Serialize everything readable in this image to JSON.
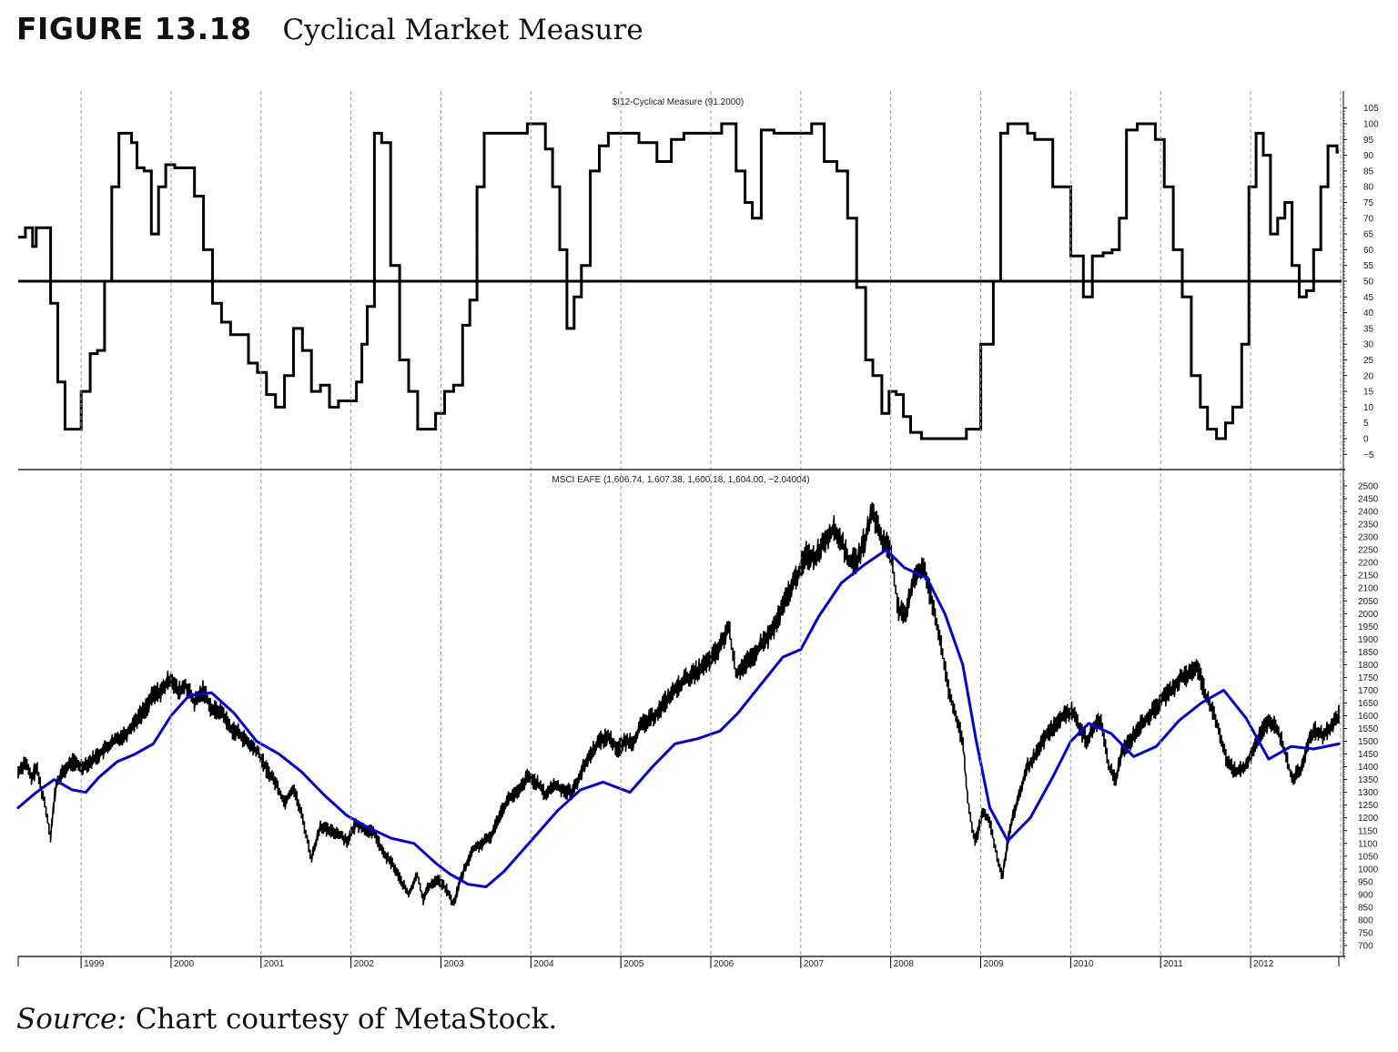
{
  "figure": {
    "label": "FIGURE 13.18",
    "title": "Cyclical Market Measure"
  },
  "source": {
    "prefix": "Source:",
    "text": "Chart courtesy of MetaStock."
  },
  "chart_data": [
    {
      "type": "line",
      "title": "$I12-Cyclical Measure (91.2000)",
      "ylim": [
        -7,
        107
      ],
      "yticks": [
        105,
        100,
        95,
        90,
        85,
        80,
        75,
        70,
        65,
        60,
        55,
        50,
        45,
        40,
        35,
        30,
        25,
        20,
        15,
        10,
        5,
        0,
        -5
      ],
      "ytick_labels": [
        "105",
        "100",
        "95",
        "90",
        "85",
        "80",
        "75",
        "70",
        "65",
        "60",
        "55",
        "50",
        "45",
        "40",
        "35",
        "30",
        "25",
        "20",
        "15",
        "10",
        "5",
        "0",
        "−5"
      ],
      "reference_line": 50,
      "grid": "vertical dashed at year boundaries",
      "series": [
        {
          "color": "#000000",
          "x": [
            1998.28,
            1998.38,
            1998.42,
            1998.46,
            1998.5,
            1998.58,
            1998.66,
            1998.74,
            1998.82,
            1998.9,
            1999.0,
            1999.1,
            1999.18,
            1999.26,
            1999.34,
            1999.42,
            1999.5,
            1999.56,
            1999.62,
            1999.7,
            1999.78,
            1999.86,
            1999.94,
            2000.04,
            2000.16,
            2000.26,
            2000.36,
            2000.46,
            2000.56,
            2000.66,
            2000.76,
            2000.86,
            2000.96,
            2001.06,
            2001.16,
            2001.26,
            2001.36,
            2001.46,
            2001.56,
            2001.66,
            2001.76,
            2001.86,
            2001.96,
            2002.06,
            2002.12,
            2002.18,
            2002.26,
            2002.34,
            2002.44,
            2002.54,
            2002.64,
            2002.74,
            2002.84,
            2002.94,
            2003.04,
            2003.14,
            2003.24,
            2003.32,
            2003.4,
            2003.48,
            2003.56,
            2003.66,
            2003.8,
            2003.96,
            2004.1,
            2004.16,
            2004.24,
            2004.32,
            2004.4,
            2004.48,
            2004.56,
            2004.66,
            2004.76,
            2004.86,
            2005.0,
            2005.2,
            2005.4,
            2005.56,
            2005.7,
            2005.84,
            2006.0,
            2006.12,
            2006.2,
            2006.28,
            2006.38,
            2006.46,
            2006.56,
            2006.7,
            2006.8,
            2006.96,
            2007.12,
            2007.26,
            2007.4,
            2007.52,
            2007.62,
            2007.72,
            2007.8,
            2007.9,
            2007.98,
            2008.06,
            2008.14,
            2008.22,
            2008.34,
            2008.46,
            2008.58,
            2008.7,
            2008.84,
            2009.0,
            2009.14,
            2009.22,
            2009.3,
            2009.36,
            2009.44,
            2009.52,
            2009.6,
            2009.8,
            2010.0,
            2010.14,
            2010.24,
            2010.36,
            2010.46,
            2010.54,
            2010.62,
            2010.74,
            2010.84,
            2010.94,
            2011.04,
            2011.14,
            2011.24,
            2011.34,
            2011.44,
            2011.52,
            2011.62,
            2011.72,
            2011.8,
            2011.9,
            2011.98,
            2012.06,
            2012.14,
            2012.22,
            2012.3,
            2012.38,
            2012.46,
            2012.54,
            2012.62,
            2012.7,
            2012.78,
            2012.86,
            2012.96
          ],
          "y": [
            64,
            67,
            67,
            61,
            67,
            67,
            43,
            18,
            3,
            3,
            15,
            27,
            28,
            50,
            80,
            97,
            97,
            94,
            86,
            85,
            65,
            80,
            87,
            86,
            86,
            77,
            60,
            43,
            37,
            33,
            33,
            24,
            21,
            14,
            10,
            20,
            35,
            28,
            15,
            17,
            10,
            12,
            12,
            18,
            30,
            42,
            97,
            94,
            55,
            25,
            15,
            3,
            3,
            8,
            15,
            17,
            36,
            44,
            80,
            97,
            97,
            97,
            97,
            100,
            100,
            92,
            80,
            60,
            35,
            45,
            55,
            85,
            93,
            97,
            97,
            94,
            88,
            95,
            97,
            97,
            97,
            100,
            100,
            85,
            75,
            70,
            98,
            97,
            97,
            97,
            100,
            88,
            85,
            70,
            48,
            25,
            20,
            8,
            15,
            14,
            7,
            2,
            0,
            0,
            0,
            0,
            3,
            30,
            50,
            97,
            100,
            100,
            100,
            97,
            95,
            80,
            58,
            45,
            58,
            59,
            60,
            70,
            98,
            100,
            100,
            95,
            80,
            60,
            45,
            20,
            10,
            3,
            0,
            5,
            10,
            30,
            80,
            97,
            90,
            65,
            70,
            75,
            55,
            45,
            47,
            60,
            80,
            93,
            91
          ]
        }
      ]
    },
    {
      "type": "line",
      "title": "MSCI EAFE (1,606.74, 1,607.38, 1,600.18, 1,604.00, −2.04004)",
      "xlim": [
        1998.3,
        2012.98
      ],
      "ylim": [
        650,
        2520
      ],
      "yticks": [
        2500,
        2450,
        2400,
        2350,
        2300,
        2250,
        2200,
        2150,
        2100,
        2050,
        2000,
        1950,
        1900,
        1850,
        1800,
        1750,
        1700,
        1650,
        1600,
        1550,
        1500,
        1450,
        1400,
        1350,
        1300,
        1250,
        1200,
        1150,
        1100,
        1050,
        1000,
        950,
        900,
        850,
        800,
        750,
        700
      ],
      "xtick_labels": [
        "1999",
        "2000",
        "2001",
        "2002",
        "2003",
        "2004",
        "2005",
        "2006",
        "2007",
        "2008",
        "2009",
        "2010",
        "2011",
        "2012"
      ],
      "grid": "vertical dashed at year boundaries",
      "series": [
        {
          "color": "#000000",
          "x": [
            1998.3,
            1998.38,
            1998.45,
            1998.5,
            1998.6,
            1998.66,
            1998.72,
            1998.8,
            1998.9,
            1999.0,
            1999.1,
            1999.2,
            1999.3,
            1999.4,
            1999.5,
            1999.6,
            1999.7,
            1999.8,
            1999.9,
            2000.0,
            2000.08,
            2000.16,
            2000.26,
            2000.36,
            2000.46,
            2000.56,
            2000.66,
            2000.76,
            2000.86,
            2000.96,
            2001.06,
            2001.16,
            2001.26,
            2001.36,
            2001.46,
            2001.56,
            2001.66,
            2001.74,
            2001.86,
            2001.96,
            2002.06,
            2002.16,
            2002.26,
            2002.36,
            2002.46,
            2002.56,
            2002.64,
            2002.74,
            2002.8,
            2002.86,
            2002.96,
            2003.06,
            2003.14,
            2003.2,
            2003.26,
            2003.36,
            2003.46,
            2003.56,
            2003.66,
            2003.76,
            2003.86,
            2003.96,
            2004.06,
            2004.16,
            2004.26,
            2004.36,
            2004.46,
            2004.56,
            2004.66,
            2004.76,
            2004.86,
            2004.96,
            2005.06,
            2005.14,
            2005.22,
            2005.3,
            2005.4,
            2005.5,
            2005.6,
            2005.7,
            2005.8,
            2005.9,
            2006.0,
            2006.1,
            2006.2,
            2006.28,
            2006.36,
            2006.46,
            2006.56,
            2006.66,
            2006.76,
            2006.86,
            2006.96,
            2007.06,
            2007.16,
            2007.26,
            2007.36,
            2007.46,
            2007.52,
            2007.62,
            2007.72,
            2007.8,
            2007.9,
            2008.0,
            2008.08,
            2008.16,
            2008.26,
            2008.36,
            2008.46,
            2008.56,
            2008.64,
            2008.72,
            2008.8,
            2008.86,
            2008.94,
            2009.02,
            2009.1,
            2009.16,
            2009.24,
            2009.32,
            2009.42,
            2009.52,
            2009.62,
            2009.72,
            2009.82,
            2009.92,
            2010.02,
            2010.1,
            2010.18,
            2010.26,
            2010.34,
            2010.42,
            2010.5,
            2010.58,
            2010.66,
            2010.74,
            2010.82,
            2010.92,
            2011.02,
            2011.12,
            2011.22,
            2011.32,
            2011.4,
            2011.5,
            2011.6,
            2011.66,
            2011.74,
            2011.84,
            2011.94,
            2012.04,
            2012.14,
            2012.22,
            2012.3,
            2012.38,
            2012.46,
            2012.56,
            2012.64,
            2012.72,
            2012.8,
            2012.9,
            2012.98
          ],
          "y": [
            1380,
            1420,
            1350,
            1400,
            1250,
            1130,
            1330,
            1380,
            1420,
            1400,
            1420,
            1450,
            1480,
            1510,
            1530,
            1580,
            1620,
            1680,
            1700,
            1750,
            1690,
            1720,
            1650,
            1700,
            1620,
            1620,
            1550,
            1530,
            1490,
            1460,
            1390,
            1340,
            1260,
            1320,
            1200,
            1040,
            1170,
            1150,
            1140,
            1110,
            1180,
            1150,
            1140,
            1060,
            1020,
            950,
            900,
            980,
            880,
            930,
            960,
            920,
            860,
            940,
            1000,
            1080,
            1100,
            1130,
            1220,
            1280,
            1300,
            1360,
            1340,
            1290,
            1330,
            1310,
            1300,
            1380,
            1450,
            1500,
            1520,
            1470,
            1500,
            1500,
            1560,
            1580,
            1610,
            1660,
            1700,
            1740,
            1760,
            1790,
            1820,
            1870,
            1950,
            1760,
            1800,
            1820,
            1880,
            1920,
            1990,
            2080,
            2150,
            2230,
            2220,
            2290,
            2330,
            2280,
            2210,
            2200,
            2300,
            2400,
            2290,
            2250,
            2020,
            1980,
            2150,
            2180,
            2050,
            1880,
            1700,
            1600,
            1500,
            1250,
            1100,
            1220,
            1190,
            1080,
            970,
            1150,
            1280,
            1400,
            1450,
            1520,
            1560,
            1600,
            1620,
            1550,
            1500,
            1560,
            1580,
            1400,
            1350,
            1470,
            1500,
            1550,
            1580,
            1620,
            1670,
            1700,
            1750,
            1760,
            1800,
            1680,
            1600,
            1520,
            1420,
            1380,
            1400,
            1480,
            1550,
            1580,
            1550,
            1460,
            1350,
            1390,
            1500,
            1540,
            1520,
            1560,
            1600
          ]
        },
        {
          "color": "#0000e0",
          "x": [
            1998.3,
            1998.5,
            1998.7,
            1998.9,
            1999.05,
            1999.2,
            1999.4,
            1999.6,
            1999.8,
            2000.0,
            2000.2,
            2000.45,
            2000.7,
            2000.95,
            2001.2,
            2001.45,
            2001.7,
            2001.95,
            2002.2,
            2002.45,
            2002.7,
            2002.95,
            2003.1,
            2003.3,
            2003.5,
            2003.7,
            2003.9,
            2004.1,
            2004.3,
            2004.55,
            2004.8,
            2005.1,
            2005.35,
            2005.6,
            2005.85,
            2006.1,
            2006.3,
            2006.55,
            2006.8,
            2007.0,
            2007.2,
            2007.45,
            2007.7,
            2007.95,
            2008.15,
            2008.4,
            2008.6,
            2008.8,
            2008.95,
            2009.1,
            2009.3,
            2009.55,
            2009.8,
            2010.0,
            2010.2,
            2010.45,
            2010.7,
            2010.95,
            2011.2,
            2011.45,
            2011.7,
            2011.95,
            2012.2,
            2012.45,
            2012.7,
            2012.98
          ],
          "y": [
            1240,
            1300,
            1350,
            1310,
            1300,
            1360,
            1420,
            1450,
            1490,
            1600,
            1680,
            1690,
            1610,
            1500,
            1450,
            1380,
            1290,
            1210,
            1160,
            1120,
            1100,
            1020,
            980,
            940,
            930,
            990,
            1070,
            1150,
            1230,
            1310,
            1340,
            1300,
            1400,
            1490,
            1510,
            1540,
            1610,
            1720,
            1830,
            1860,
            1990,
            2120,
            2190,
            2250,
            2180,
            2140,
            2000,
            1800,
            1500,
            1240,
            1110,
            1200,
            1360,
            1500,
            1570,
            1530,
            1440,
            1480,
            1580,
            1650,
            1700,
            1590,
            1430,
            1480,
            1470,
            1490
          ]
        }
      ]
    }
  ]
}
